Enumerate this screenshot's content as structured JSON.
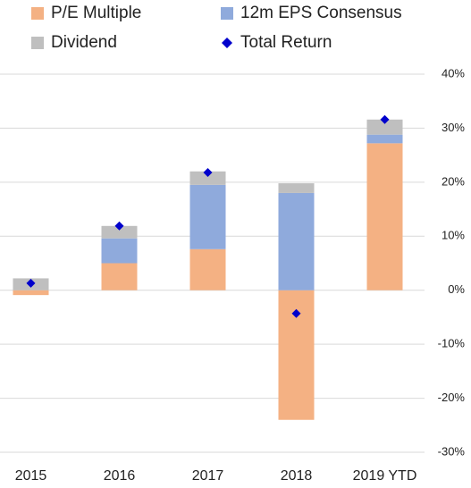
{
  "chart_data": {
    "type": "bar",
    "categories": [
      "2015",
      "2016",
      "2017",
      "2018",
      "2019 YTD"
    ],
    "series": [
      {
        "name": "P/E Multiple",
        "color": "#f4b183",
        "values": [
          -0.9,
          5.0,
          7.6,
          -24.0,
          27.2
        ]
      },
      {
        "name": "12m EPS Consensus",
        "color": "#8faadc",
        "values": [
          0,
          4.6,
          11.9,
          18.0,
          1.6
        ]
      },
      {
        "name": "Dividend",
        "color": "#bfbfbf",
        "values": [
          2.2,
          2.3,
          2.5,
          1.8,
          2.8
        ]
      },
      {
        "name": "Total Return",
        "color": "#0000cc",
        "type": "scatter",
        "values": [
          1.3,
          11.9,
          21.8,
          -4.3,
          31.6
        ]
      }
    ],
    "ylim": [
      -30,
      40
    ],
    "yticks": [
      {
        "value": -30,
        "label": "-30%"
      },
      {
        "value": -20,
        "label": "-20%"
      },
      {
        "value": -10,
        "label": "-10%"
      },
      {
        "value": 0,
        "label": "0%"
      },
      {
        "value": 10,
        "label": "10%"
      },
      {
        "value": 20,
        "label": "20%"
      },
      {
        "value": 30,
        "label": "30%"
      },
      {
        "value": 40,
        "label": "40%"
      }
    ],
    "grid": true,
    "legend": "top"
  }
}
